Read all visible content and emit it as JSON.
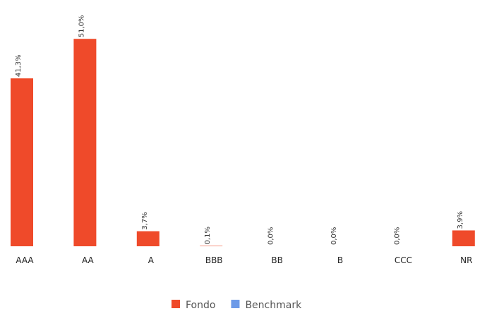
{
  "chart_data": {
    "type": "bar",
    "categories": [
      "AAA",
      "AA",
      "A",
      "BBB",
      "BB",
      "B",
      "CCC",
      "NR"
    ],
    "series": [
      {
        "name": "Fondo",
        "color": "#ef4a2a",
        "values": [
          41.3,
          51.0,
          3.7,
          0.1,
          0.0,
          0.0,
          0.0,
          3.9
        ],
        "value_labels": [
          "41,3%",
          "51,0%",
          "3,7%",
          "0,1%",
          "0,0%",
          "0,0%",
          "0,0%",
          "3,9%"
        ]
      },
      {
        "name": "Benchmark",
        "color": "#6d9ae8",
        "values": [
          null,
          null,
          null,
          null,
          null,
          null,
          null,
          null
        ]
      }
    ],
    "legend": "bottom"
  }
}
